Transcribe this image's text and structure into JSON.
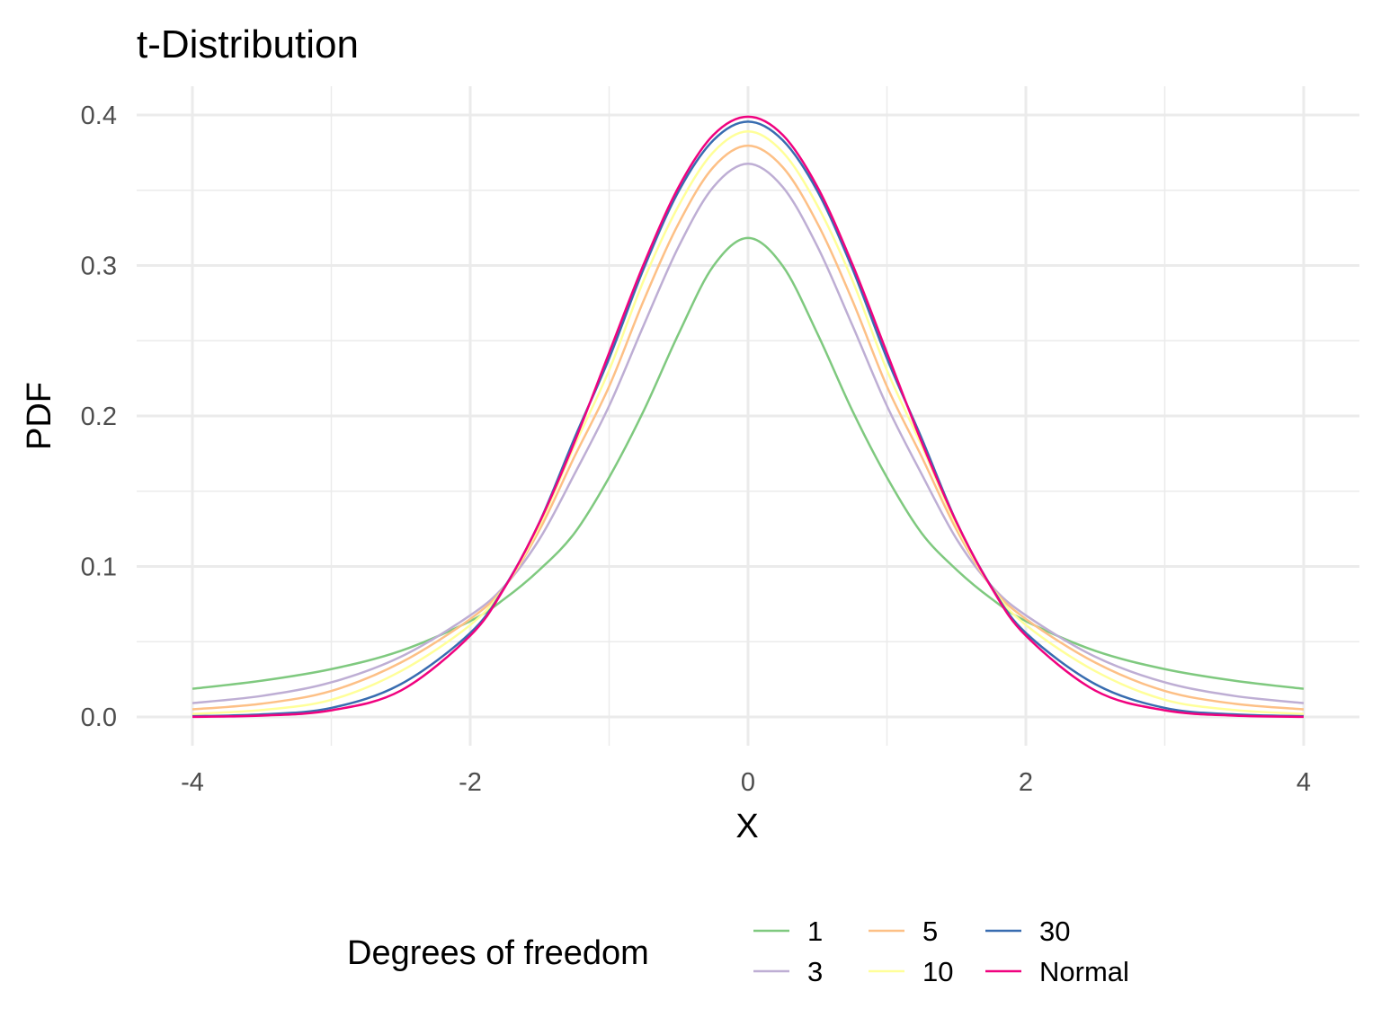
{
  "chart_data": {
    "type": "line",
    "title": "t-Distribution",
    "xlabel": "X",
    "ylabel": "PDF",
    "xlim": [
      -4,
      4
    ],
    "ylim": [
      0,
      0.4
    ],
    "x_ticks": [
      -4,
      -2,
      0,
      2,
      4
    ],
    "x_tick_labels": [
      "-4",
      "-2",
      "0",
      "2",
      "4"
    ],
    "y_ticks": [
      0,
      0.1,
      0.2,
      0.3,
      0.4
    ],
    "y_tick_labels": [
      "0.0",
      "0.1",
      "0.2",
      "0.3",
      "0.4"
    ],
    "grid": true,
    "legend": {
      "title": "Degrees of freedom",
      "position": "bottom",
      "entries": [
        "1",
        "3",
        "5",
        "10",
        "30",
        "Normal"
      ]
    },
    "x": [
      -4.0,
      -3.5,
      -3.0,
      -2.5,
      -2.0,
      -1.75,
      -1.5,
      -1.25,
      -1.0,
      -0.75,
      -0.5,
      -0.25,
      0.0,
      0.25,
      0.5,
      0.75,
      1.0,
      1.25,
      1.5,
      1.75,
      2.0,
      2.5,
      3.0,
      3.5,
      4.0
    ],
    "series": [
      {
        "name": "1",
        "color": "#7FC97F",
        "values": [
          0.0187,
          0.0241,
          0.0318,
          0.0439,
          0.0637,
          0.0787,
          0.0979,
          0.1221,
          0.1592,
          0.2037,
          0.2546,
          0.2996,
          0.3183,
          0.2996,
          0.2546,
          0.2037,
          0.1592,
          0.1221,
          0.0979,
          0.0787,
          0.0637,
          0.0439,
          0.0318,
          0.0241,
          0.0187
        ]
      },
      {
        "name": "3",
        "color": "#BEAED4",
        "values": [
          0.0092,
          0.014,
          0.023,
          0.04,
          0.0675,
          0.0873,
          0.1184,
          0.1613,
          0.2067,
          0.2605,
          0.3125,
          0.3521,
          0.3676,
          0.3521,
          0.3125,
          0.2605,
          0.2067,
          0.1613,
          0.1184,
          0.0873,
          0.0675,
          0.04,
          0.023,
          0.014,
          0.0092
        ]
      },
      {
        "name": "5",
        "color": "#FDC086",
        "values": [
          0.0051,
          0.0088,
          0.0173,
          0.0361,
          0.0651,
          0.0868,
          0.1245,
          0.1729,
          0.2196,
          0.277,
          0.3279,
          0.3653,
          0.3796,
          0.3653,
          0.3279,
          0.277,
          0.2196,
          0.1729,
          0.1245,
          0.0868,
          0.0651,
          0.0361,
          0.0173,
          0.0088,
          0.0051
        ]
      },
      {
        "name": "10",
        "color": "#FFFF99",
        "values": [
          0.002,
          0.0046,
          0.0114,
          0.0304,
          0.0611,
          0.0866,
          0.1274,
          0.1802,
          0.2304,
          0.2904,
          0.3397,
          0.3753,
          0.3891,
          0.3753,
          0.3397,
          0.2904,
          0.2304,
          0.1802,
          0.1274,
          0.0866,
          0.0611,
          0.0304,
          0.0114,
          0.0046,
          0.002
        ]
      },
      {
        "name": "30",
        "color": "#386CB0",
        "values": [
          0.0005,
          0.0017,
          0.006,
          0.0218,
          0.0558,
          0.0867,
          0.1297,
          0.1851,
          0.2383,
          0.2982,
          0.3493,
          0.3832,
          0.3956,
          0.3832,
          0.3493,
          0.2982,
          0.2383,
          0.1851,
          0.1297,
          0.0867,
          0.0558,
          0.0218,
          0.006,
          0.0017,
          0.0005
        ]
      },
      {
        "name": "Normal",
        "color": "#F0027F",
        "values": [
          0.0001,
          0.0009,
          0.0044,
          0.0175,
          0.054,
          0.0863,
          0.1295,
          0.1826,
          0.242,
          0.3011,
          0.3521,
          0.3867,
          0.3989,
          0.3867,
          0.3521,
          0.3011,
          0.242,
          0.1826,
          0.1295,
          0.0863,
          0.054,
          0.0175,
          0.0044,
          0.0009,
          0.0001
        ]
      }
    ]
  }
}
